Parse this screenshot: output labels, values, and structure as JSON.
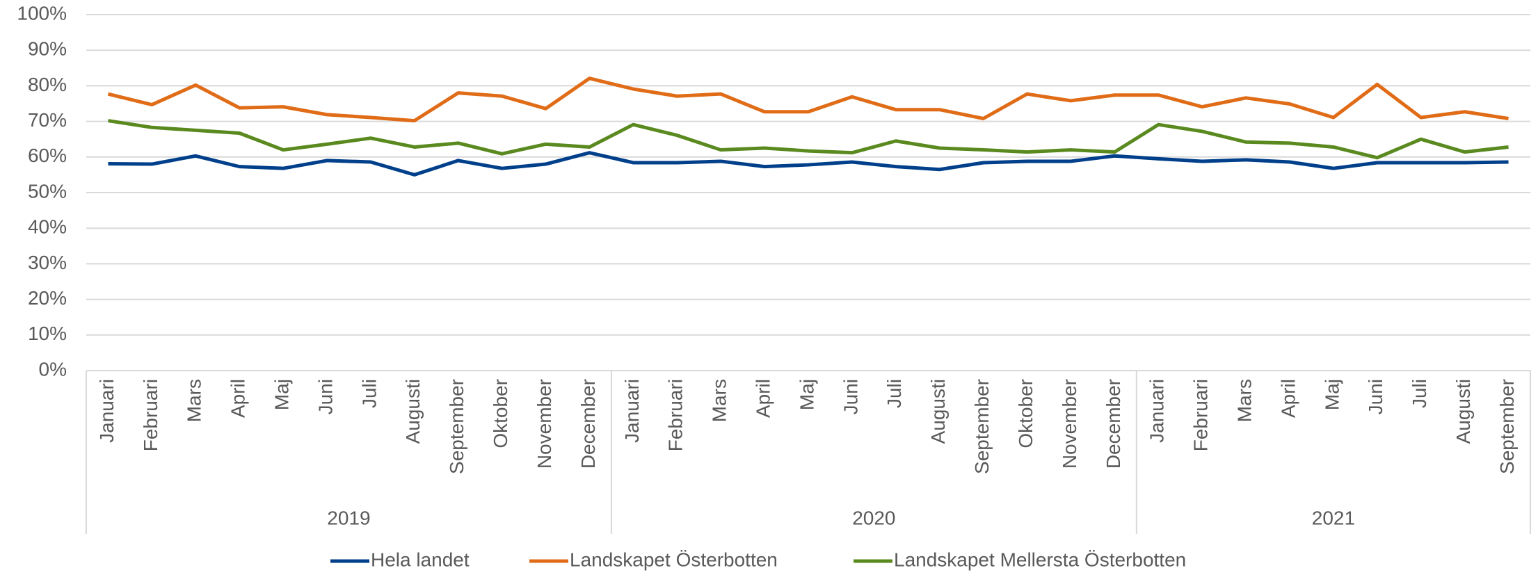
{
  "chart_data": {
    "type": "line",
    "groups": [
      {
        "name": "2019",
        "categories": [
          "Januari",
          "Februari",
          "Mars",
          "April",
          "Maj",
          "Juni",
          "Juli",
          "Augusti",
          "September",
          "Oktober",
          "November",
          "December"
        ]
      },
      {
        "name": "2020",
        "categories": [
          "Januari",
          "Februari",
          "Mars",
          "April",
          "Maj",
          "Juni",
          "Juli",
          "Augusti",
          "September",
          "Oktober",
          "November",
          "December"
        ]
      },
      {
        "name": "2021",
        "categories": [
          "Januari",
          "Februari",
          "Mars",
          "April",
          "Maj",
          "Juni",
          "Juli",
          "Augusti",
          "September"
        ]
      }
    ],
    "series": [
      {
        "name": "Hela landet",
        "color": "#003f8a",
        "values": [
          58.1,
          58.0,
          60.3,
          57.3,
          56.8,
          59.0,
          58.6,
          55.0,
          59.0,
          56.8,
          58.0,
          61.2,
          58.4,
          58.4,
          58.8,
          57.3,
          57.8,
          58.6,
          57.3,
          56.5,
          58.4,
          58.8,
          58.8,
          60.3,
          59.5,
          58.8,
          59.2,
          58.6,
          56.8,
          58.4,
          58.4,
          58.4,
          58.6
        ]
      },
      {
        "name": "Landskapet Österbotten",
        "color": "#e06c17",
        "values": [
          77.7,
          74.7,
          80.2,
          73.8,
          74.1,
          71.9,
          71.1,
          70.2,
          78.0,
          77.1,
          73.6,
          82.1,
          79.1,
          77.1,
          77.7,
          72.7,
          72.7,
          76.9,
          73.3,
          73.3,
          70.8,
          77.7,
          75.8,
          77.4,
          77.4,
          74.1,
          76.6,
          74.9,
          71.1,
          80.4,
          71.1,
          72.7,
          70.8
        ]
      },
      {
        "name": "Landskapet Mellersta Österbotten",
        "color": "#5a8a1f",
        "values": [
          70.2,
          68.3,
          67.5,
          66.7,
          62.0,
          63.6,
          65.3,
          62.8,
          63.9,
          60.9,
          63.6,
          62.8,
          69.1,
          66.1,
          62.0,
          62.5,
          61.7,
          61.2,
          64.5,
          62.5,
          62.0,
          61.4,
          62.0,
          61.4,
          69.1,
          67.2,
          64.2,
          63.9,
          62.8,
          59.8,
          65.0,
          61.4,
          62.8
        ]
      }
    ],
    "ylim": [
      0,
      100
    ],
    "yticks": [
      {
        "value": 0,
        "label": "0%"
      },
      {
        "value": 10,
        "label": "10%"
      },
      {
        "value": 20,
        "label": "20%"
      },
      {
        "value": 30,
        "label": "30%"
      },
      {
        "value": 40,
        "label": "40%"
      },
      {
        "value": 50,
        "label": "50%"
      },
      {
        "value": 60,
        "label": "60%"
      },
      {
        "value": 70,
        "label": "70%"
      },
      {
        "value": 80,
        "label": "80%"
      },
      {
        "value": 90,
        "label": "90%"
      },
      {
        "value": 100,
        "label": "100%"
      }
    ],
    "grid": true,
    "legend": "bottom"
  }
}
